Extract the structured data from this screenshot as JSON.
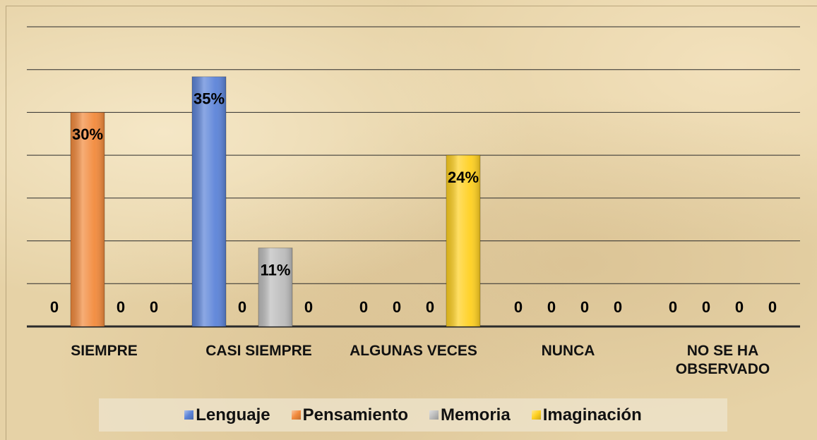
{
  "chart_data": {
    "type": "bar",
    "categories": [
      "SIEMPRE",
      "CASI SIEMPRE",
      "ALGUNAS VECES",
      "NUNCA",
      "NO SE HA OBSERVADO"
    ],
    "series": [
      {
        "name": "Lenguaje",
        "color": "#5b83d8",
        "values": [
          0,
          35,
          0,
          0,
          0
        ],
        "value_labels": [
          "0",
          "35%",
          "0",
          "0",
          "0"
        ]
      },
      {
        "name": "Pensamiento",
        "color": "#f28a3c",
        "values": [
          30,
          0,
          0,
          0,
          0
        ],
        "value_labels": [
          "30%",
          "0",
          "0",
          "0",
          "0"
        ]
      },
      {
        "name": "Memoria",
        "color": "#bdbdbd",
        "values": [
          0,
          11,
          0,
          0,
          0
        ],
        "value_labels": [
          "0",
          "11%",
          "0",
          "0",
          "0"
        ]
      },
      {
        "name": "Imaginación",
        "color": "#ffd020",
        "values": [
          0,
          0,
          24,
          0,
          0
        ],
        "value_labels": [
          "0",
          "0",
          "24%",
          "0",
          "0"
        ]
      }
    ],
    "ylim": [
      0,
      42
    ],
    "yticks": [
      0,
      6,
      12,
      18,
      24,
      30,
      36,
      42
    ],
    "grid": true,
    "legend": "bottom"
  }
}
